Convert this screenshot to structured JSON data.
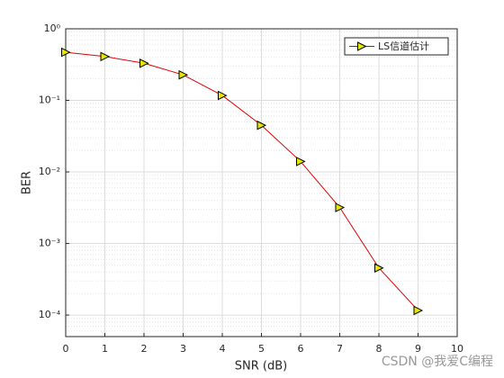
{
  "chart_data": {
    "type": "line",
    "xlabel": "SNR (dB)",
    "ylabel": "BER",
    "x": [
      0,
      1,
      2,
      3,
      4,
      5,
      6,
      7,
      8,
      9
    ],
    "series": [
      {
        "name": "LS信道估计",
        "color": "#e00000",
        "marker_color": "#e6e600",
        "values": [
          0.47,
          0.41,
          0.33,
          0.227,
          0.117,
          0.0448,
          0.014,
          0.00318,
          0.000455,
          0.000116
        ]
      }
    ],
    "xlim": [
      0,
      10
    ],
    "xticks": [
      0,
      1,
      2,
      3,
      4,
      5,
      6,
      7,
      8,
      9,
      10
    ],
    "ylim": [
      5e-05,
      1
    ],
    "ylog": true,
    "yticks": [
      {
        "value": 1,
        "label": "10⁰"
      },
      {
        "value": 0.1,
        "label": "10⁻¹"
      },
      {
        "value": 0.01,
        "label": "10⁻²"
      },
      {
        "value": 0.001,
        "label": "10⁻³"
      },
      {
        "value": 0.0001,
        "label": "10⁻⁴"
      }
    ],
    "grid": true,
    "minor_grid": true,
    "legend": "upper right"
  },
  "watermark": "CSDN @我爱C编程"
}
